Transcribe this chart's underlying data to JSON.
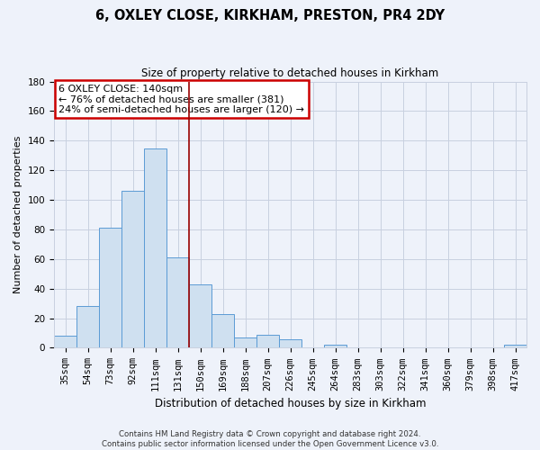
{
  "title": "6, OXLEY CLOSE, KIRKHAM, PRESTON, PR4 2DY",
  "subtitle": "Size of property relative to detached houses in Kirkham",
  "xlabel": "Distribution of detached houses by size in Kirkham",
  "ylabel": "Number of detached properties",
  "categories": [
    "35sqm",
    "54sqm",
    "73sqm",
    "92sqm",
    "111sqm",
    "131sqm",
    "150sqm",
    "169sqm",
    "188sqm",
    "207sqm",
    "226sqm",
    "245sqm",
    "264sqm",
    "283sqm",
    "303sqm",
    "322sqm",
    "341sqm",
    "360sqm",
    "379sqm",
    "398sqm",
    "417sqm"
  ],
  "values": [
    8,
    28,
    81,
    106,
    135,
    61,
    43,
    23,
    7,
    9,
    6,
    0,
    2,
    0,
    0,
    0,
    0,
    0,
    0,
    0,
    2
  ],
  "bar_color": "#cfe0f0",
  "bar_edge_color": "#5b9bd5",
  "annotation_box_text": "6 OXLEY CLOSE: 140sqm\n← 76% of detached houses are smaller (381)\n24% of semi-detached houses are larger (120) →",
  "annotation_box_color": "white",
  "annotation_box_edge_color": "#cc0000",
  "vline_pos": 5.5,
  "ylim": [
    0,
    180
  ],
  "yticks": [
    0,
    20,
    40,
    60,
    80,
    100,
    120,
    140,
    160,
    180
  ],
  "footer_line1": "Contains HM Land Registry data © Crown copyright and database right 2024.",
  "footer_line2": "Contains public sector information licensed under the Open Government Licence v3.0.",
  "background_color": "#eef2fa",
  "plot_bg_color": "#eef2fa",
  "grid_color": "#c8d0e0",
  "title_fontsize": 10.5,
  "subtitle_fontsize": 8.5,
  "ylabel_fontsize": 8,
  "xlabel_fontsize": 8.5,
  "tick_fontsize": 7.5,
  "footer_fontsize": 6.2
}
